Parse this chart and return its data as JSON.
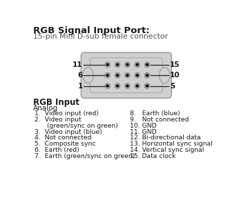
{
  "title_bold": "RGB Signal Input Port:",
  "title_sub": "15-pin Mini D-sub female connector",
  "connector_bg": "#d0d0d0",
  "connector_border": "#888888",
  "pin_ring_color": "#888888",
  "pin_fill": "#1a1a1a",
  "left_labels": [
    "11",
    "6",
    "1"
  ],
  "right_labels": [
    "15",
    "10",
    "5"
  ],
  "section_title": "RGB Input",
  "section_sub": "Analog",
  "left_col": [
    "1.  Video input (red)",
    "2.  Video input",
    "      (green/sync on green)",
    "3.  Video input (blue)",
    "4.  Not connected",
    "5.  Composite sync",
    "6.  Earth (red)",
    "7.  Earth (green/sync on green)"
  ],
  "right_col": [
    "8.   Earth (blue)",
    "9.   Not connected",
    "10. GND",
    "11. GND",
    "12. Bi-directional data",
    "13. Horizontal sync signal",
    "14. Vertical sync signal",
    "15. Data clock"
  ],
  "bg_color": "#ffffff",
  "text_color": "#1a1a1a"
}
